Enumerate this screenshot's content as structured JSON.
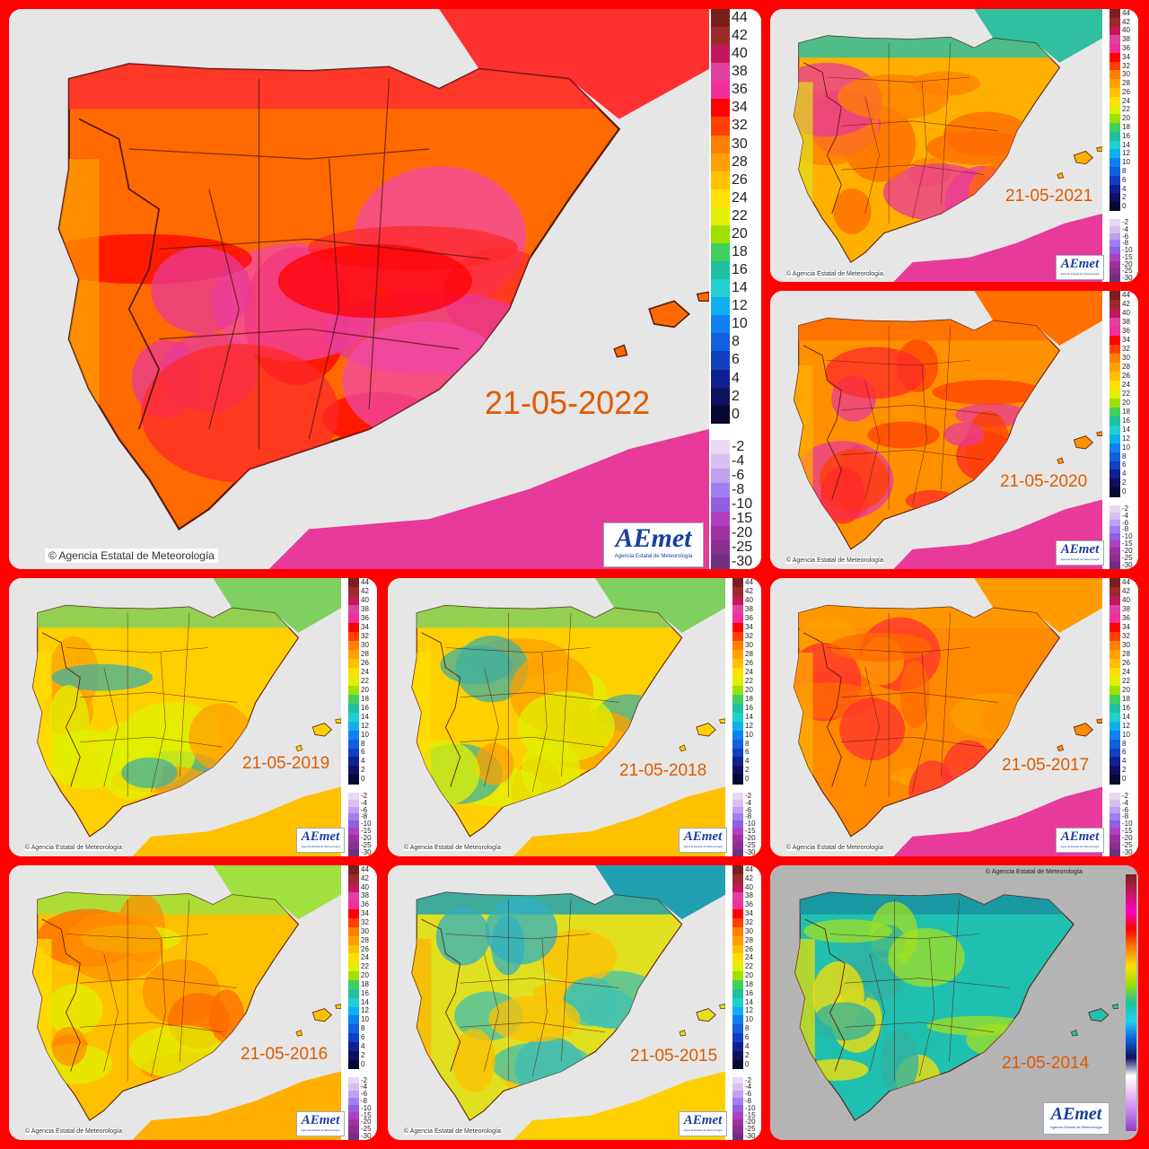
{
  "colors": {
    "background": "#ff0000",
    "date_label": "#e05a00",
    "sea": "#e6e6e6",
    "logo_blue": "#1a3fa0"
  },
  "credit": "Agencia Estatal de Meteorología",
  "logo": {
    "wordmark": "AEmet",
    "subtitle": "Agencia Estatal de Meteorología"
  },
  "legend": {
    "warm_ticks": [
      "44",
      "42",
      "40",
      "38",
      "36",
      "34",
      "32",
      "30",
      "28",
      "26",
      "24",
      "22",
      "20",
      "18",
      "16",
      "14",
      "12",
      "10",
      "8",
      "6",
      "4",
      "2",
      "0"
    ],
    "cold_ticks": [
      "-2",
      "-4",
      "-6",
      "-8",
      "-10",
      "-15",
      "-20",
      "-25",
      "-30"
    ],
    "big_warm_ticks": [
      "44",
      "42",
      "40",
      "38",
      "36",
      "34",
      "32",
      "30",
      "28",
      "26",
      "24",
      "22",
      "20",
      "18",
      "16",
      "14",
      "12",
      "10",
      "8",
      "6",
      "4",
      "2",
      "0"
    ],
    "big_cold_ticks": [
      "-2",
      "-4",
      "-6",
      "-8",
      "-10",
      "-15",
      "-20",
      "-25",
      "-30"
    ]
  },
  "maps": [
    {
      "date": "21-05-2022",
      "palette": "extreme"
    },
    {
      "date": "21-05-2021",
      "palette": "warm_cool_north"
    },
    {
      "date": "21-05-2020",
      "palette": "hot"
    },
    {
      "date": "21-05-2019",
      "palette": "mild"
    },
    {
      "date": "21-05-2018",
      "palette": "mild"
    },
    {
      "date": "21-05-2017",
      "palette": "hot_orange"
    },
    {
      "date": "21-05-2016",
      "palette": "mild_warm"
    },
    {
      "date": "21-05-2015",
      "palette": "cool"
    },
    {
      "date": "21-05-2014",
      "palette": "cold"
    }
  ]
}
